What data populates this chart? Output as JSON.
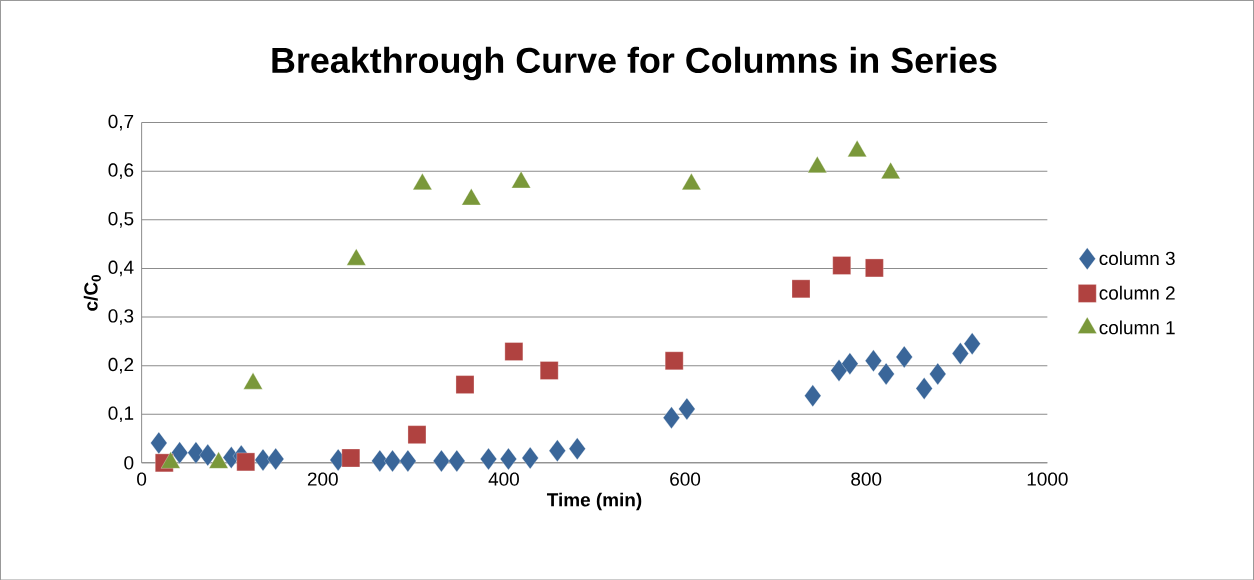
{
  "chart_data": {
    "type": "scatter",
    "title": "Breakthrough Curve for Columns in Series",
    "xlabel": "Time (min)",
    "ylabel": "c/C$_{0}$",
    "xlim": [
      0,
      1000
    ],
    "xticks": [
      0,
      200,
      400,
      600,
      800,
      1000
    ],
    "ylim": [
      0,
      0.7
    ],
    "yticks": [
      {
        "value": 0,
        "label": "0"
      },
      {
        "value": 0.1,
        "label": "0,1"
      },
      {
        "value": 0.2,
        "label": "0,2"
      },
      {
        "value": 0.3,
        "label": "0,3"
      },
      {
        "value": 0.4,
        "label": "0,4"
      },
      {
        "value": 0.5,
        "label": "0,5"
      },
      {
        "value": 0.6,
        "label": "0,6"
      },
      {
        "value": 0.7,
        "label": "0,7"
      }
    ],
    "grid": "y",
    "legend": "right",
    "series": [
      {
        "name": "column 3",
        "color": "#3a6699",
        "marker": "diamond",
        "x": [
          19,
          42,
          60,
          73,
          99,
          110,
          134,
          148,
          217,
          263,
          277,
          294,
          331,
          348,
          383,
          405,
          429,
          459,
          481,
          585,
          602,
          741,
          770,
          782,
          808,
          822,
          842,
          864,
          879,
          904,
          917
        ],
        "values": [
          0.041,
          0.021,
          0.021,
          0.016,
          0.011,
          0.014,
          0.006,
          0.008,
          0.006,
          0.004,
          0.004,
          0.004,
          0.004,
          0.004,
          0.008,
          0.008,
          0.01,
          0.025,
          0.029,
          0.093,
          0.111,
          0.138,
          0.19,
          0.204,
          0.21,
          0.183,
          0.218,
          0.153,
          0.183,
          0.225,
          0.245
        ]
      },
      {
        "name": "column 2",
        "color": "#b04240",
        "marker": "square",
        "x": [
          25,
          115,
          231,
          304,
          357,
          411,
          450,
          588,
          728,
          773,
          809
        ],
        "values": [
          0.0,
          0.002,
          0.01,
          0.058,
          0.161,
          0.229,
          0.19,
          0.21,
          0.358,
          0.406,
          0.401
        ]
      },
      {
        "name": "column 1",
        "color": "#7a983a",
        "marker": "triangle",
        "x": [
          32,
          85,
          123,
          237,
          310,
          364,
          419,
          607,
          746,
          790,
          827
        ],
        "values": [
          0.0,
          0.0,
          0.163,
          0.418,
          0.573,
          0.542,
          0.577,
          0.573,
          0.608,
          0.641,
          0.596
        ]
      }
    ]
  }
}
